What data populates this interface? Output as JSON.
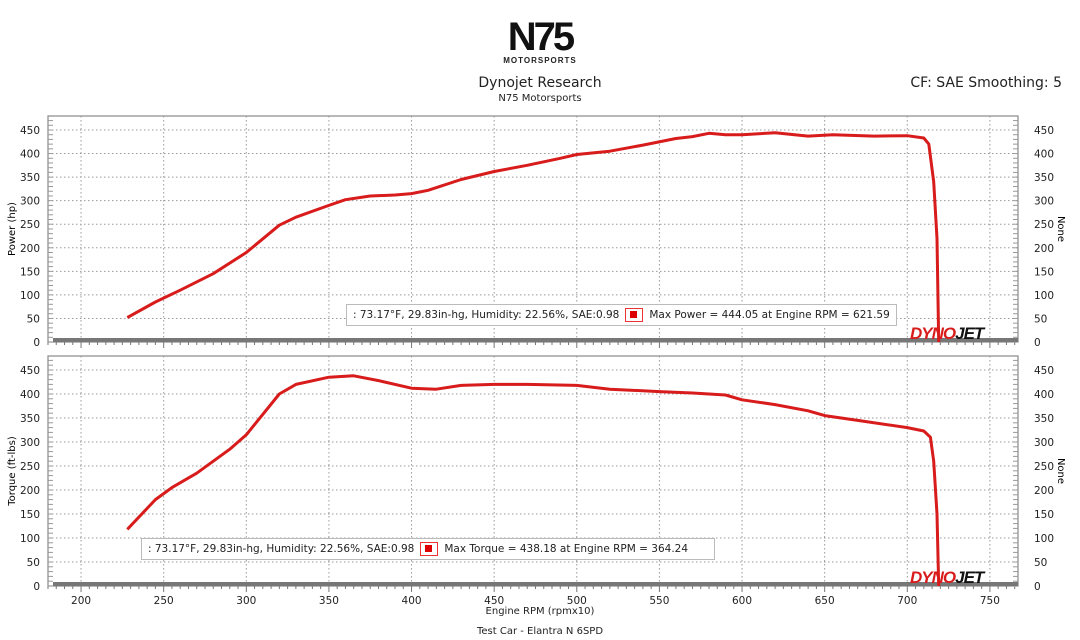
{
  "header": {
    "logo_text": "N75",
    "logo_sub": "MOTORSPORTS",
    "title": "Dynojet Research",
    "subtitle": "N75 Motorsports",
    "cf": "CF: SAE Smoothing: 5"
  },
  "footer": "Test Car - Elantra N 6SPD",
  "brand": {
    "dyno": "DYNO",
    "jet": "JET"
  },
  "colors": {
    "curve": "#d81b1b",
    "grid": "#999999"
  },
  "chart_data": [
    {
      "type": "line",
      "ylabel": "Power (hp)",
      "right_label": "None",
      "xlabel": "Engine RPM (rpmx10)",
      "xlim": [
        180,
        767
      ],
      "ylim": [
        0,
        475
      ],
      "xticks": [
        200,
        250,
        300,
        350,
        400,
        450,
        500,
        550,
        600,
        650,
        700,
        750
      ],
      "yticks": [
        0,
        50,
        100,
        150,
        200,
        250,
        300,
        350,
        400,
        450
      ],
      "grid": true,
      "legend": {
        "conditions": ": 73.17°F, 29.83in-hg, Humidity: 22.56%, SAE:0.98",
        "max": "Max Power = 444.05 at Engine RPM = 621.59"
      },
      "x": [
        228,
        245,
        260,
        280,
        300,
        320,
        330,
        350,
        360,
        375,
        390,
        400,
        410,
        430,
        450,
        470,
        490,
        500,
        520,
        540,
        560,
        570,
        580,
        590,
        600,
        620,
        640,
        655,
        680,
        700,
        710,
        713,
        716,
        718,
        719
      ],
      "y": [
        52,
        85,
        110,
        145,
        190,
        248,
        265,
        290,
        302,
        310,
        312,
        315,
        322,
        345,
        362,
        375,
        390,
        398,
        405,
        418,
        432,
        436,
        443,
        440,
        440,
        444,
        437,
        440,
        437,
        438,
        433,
        420,
        340,
        220,
        0
      ]
    },
    {
      "type": "line",
      "ylabel": "Torque (ft-lbs)",
      "right_label": "None",
      "xlabel": "Engine RPM (rpmx10)",
      "xlim": [
        180,
        767
      ],
      "ylim": [
        0,
        475
      ],
      "xticks": [
        200,
        250,
        300,
        350,
        400,
        450,
        500,
        550,
        600,
        650,
        700,
        750
      ],
      "yticks": [
        0,
        50,
        100,
        150,
        200,
        250,
        300,
        350,
        400,
        450
      ],
      "grid": true,
      "legend": {
        "conditions": ": 73.17°F, 29.83in-hg, Humidity: 22.56%, SAE:0.98",
        "max": "Max Torque = 438.18 at Engine RPM = 364.24"
      },
      "x": [
        228,
        245,
        255,
        270,
        290,
        300,
        320,
        330,
        350,
        365,
        380,
        400,
        415,
        430,
        450,
        470,
        500,
        520,
        550,
        570,
        590,
        600,
        620,
        640,
        650,
        670,
        690,
        700,
        710,
        714,
        716,
        718,
        719
      ],
      "y": [
        118,
        180,
        205,
        235,
        285,
        315,
        400,
        420,
        435,
        438,
        428,
        412,
        410,
        418,
        420,
        420,
        418,
        410,
        405,
        402,
        398,
        388,
        378,
        365,
        355,
        345,
        335,
        330,
        323,
        310,
        260,
        150,
        0
      ]
    }
  ]
}
